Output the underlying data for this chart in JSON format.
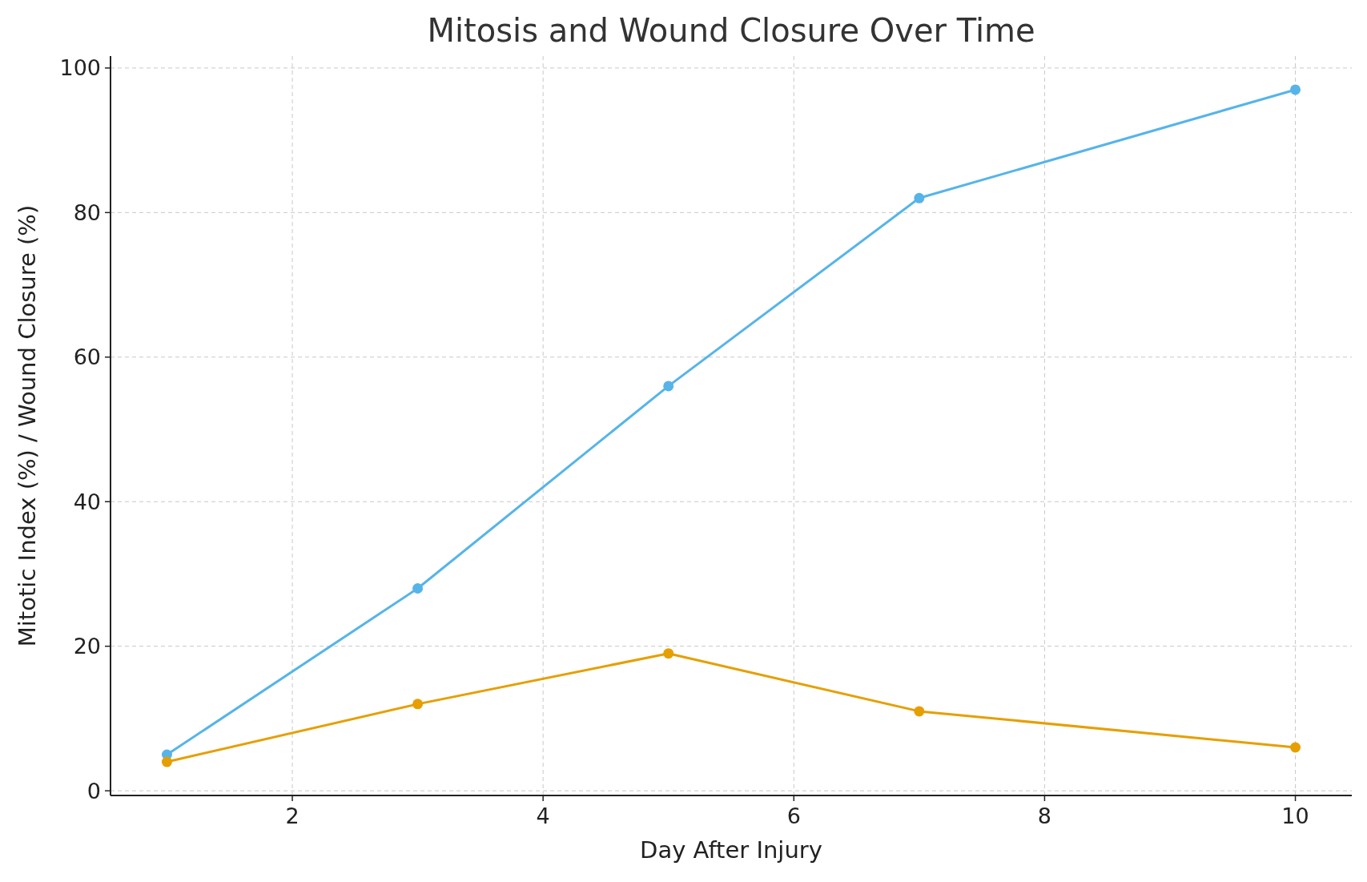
{
  "chart_data": {
    "type": "line",
    "title": "Mitosis and Wound Closure Over Time",
    "xlabel": "Day After Injury",
    "ylabel": "Mitotic Index (%) / Wound Closure (%)",
    "x": [
      1,
      3,
      5,
      7,
      10
    ],
    "series": [
      {
        "color": "#56b4e9",
        "values": [
          5,
          28,
          56,
          82,
          97
        ]
      },
      {
        "color": "#e69f00",
        "values": [
          4,
          12,
          19,
          11,
          6
        ]
      }
    ],
    "xlim": [
      0.55,
      10.45
    ],
    "xticks": [
      2,
      4,
      6,
      8,
      10
    ],
    "ylim": [
      -0.65,
      101.65
    ],
    "yticks": [
      0,
      20,
      40,
      60,
      80,
      100
    ],
    "grid": true,
    "marker": "circle",
    "line_style": "solid"
  }
}
